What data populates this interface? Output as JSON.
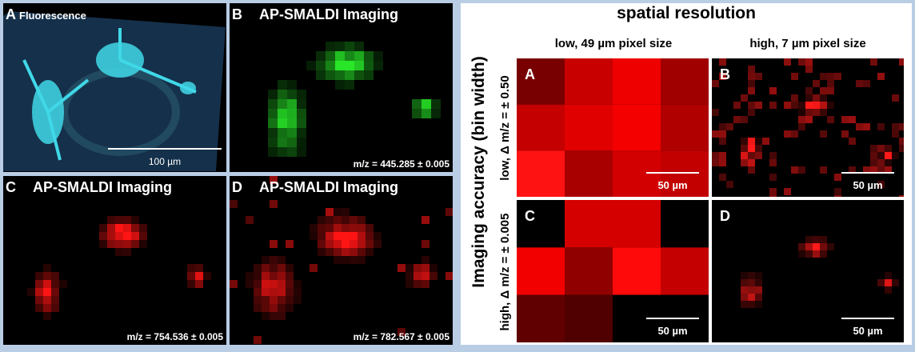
{
  "left_panels": [
    {
      "letter": "A",
      "title": "Fluorescence",
      "scale": "100 µm"
    },
    {
      "letter": "B",
      "title": "AP-SMALDI Imaging",
      "mz": "m/z = 445.285 ± 0.005"
    },
    {
      "letter": "C",
      "title": "AP-SMALDI Imaging",
      "mz": "m/z = 754.536 ± 0.005"
    },
    {
      "letter": "D",
      "title": "AP-SMALDI Imaging",
      "mz": "m/z = 782.567 ± 0.005"
    }
  ],
  "right": {
    "title": "spatial resolution",
    "columns": [
      "low, 49 µm pixel size",
      "high, 7 µm pixel size"
    ],
    "y_label": "Imaging accuracy (bin width)",
    "rows": [
      "low, Δ m/z = ± 0.50",
      "high, Δ m/z = ± 0.005"
    ],
    "panels": [
      {
        "letter": "A",
        "scale": "50 µm"
      },
      {
        "letter": "B",
        "scale": "50 µm"
      },
      {
        "letter": "C",
        "scale": "50 µm"
      },
      {
        "letter": "D",
        "scale": "50 µm"
      }
    ]
  }
}
